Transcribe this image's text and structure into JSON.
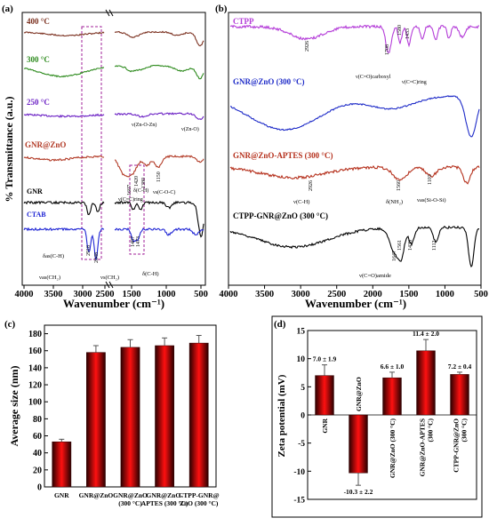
{
  "panels": {
    "a": {
      "label": "(a)",
      "xlabel": "Wavenumber (cm⁻¹)",
      "ylabel": "% Transmittance (a.u.)",
      "xticks": [
        "4000",
        "3500",
        "3000",
        "2500",
        "1500",
        "1000",
        "500"
      ],
      "curves": [
        {
          "name": "400 °C",
          "color": "#7a2f1e"
        },
        {
          "name": "300 °C",
          "color": "#2e8b1e"
        },
        {
          "name": "250 °C",
          "color": "#6a1fc4"
        },
        {
          "name": "GNR@ZnO",
          "color": "#b23a26"
        },
        {
          "name": "GNR",
          "color": "#000000"
        },
        {
          "name": "CTAB",
          "color": "#1e24d4"
        }
      ],
      "annotations": [
        "ν(Zn-O-Zn)",
        "ν(Zn-O)",
        "1607",
        "1420",
        "1380",
        "1150",
        "ν(C=C)ring",
        "δ(C-H)",
        "νs(C-O-C)",
        "2918",
        "2848",
        "1487",
        "1473",
        "δas(C-H)",
        "νas(CH₂)",
        "νs(CH₂)",
        "δ(C-H)"
      ]
    },
    "b": {
      "label": "(b)",
      "xlabel": "Wavenumber (cm⁻¹)",
      "xticks": [
        "4000",
        "3500",
        "3000",
        "2500",
        "2000",
        "1500",
        "1000",
        "500"
      ],
      "curves": [
        {
          "name": "CTPP",
          "color": "#b43cd8"
        },
        {
          "name": "GNR@ZnO (300 °C)",
          "color": "#1e2bc8"
        },
        {
          "name": "GNR@ZnO-APTES (300 °C)",
          "color": "#b5301c"
        },
        {
          "name": "CTPP-GNR@ZnO (300 °C)",
          "color": "#000000"
        }
      ],
      "annotations": [
        "2926",
        "1708",
        "1580",
        "1433",
        "ν(C=O)carboxyl",
        "ν(C=C)ring",
        "2926",
        "1560",
        "1103",
        "ν(C-H)",
        "δ(NH₂)",
        "νas(Si-O-Si)",
        "1647",
        "1561",
        "1438",
        "1112",
        "ν(C=O)amide"
      ]
    },
    "c": {
      "label": "(c)",
      "ylabel": "Average size (nm)"
    },
    "d": {
      "label": "(d)",
      "ylabel": "Zeta potential (mV)"
    }
  },
  "chart_data": [
    {
      "type": "bar",
      "panel": "c",
      "categories": [
        "GNR",
        "GNR@ZnO",
        "GNR@ZnO (300 °C)",
        "GNR@ZnO-APTES (300 °C)",
        "CTPP-GNR@ZnO (300 °C)"
      ],
      "category_lines": [
        [
          "GNR"
        ],
        [
          "GNR@ZnO"
        ],
        [
          "GNR@ZnO",
          "(300 °C)"
        ],
        [
          "GNR@ZnO-",
          "APTES (300 °C)"
        ],
        [
          "CTPP-GNR@",
          "ZnO (300 °C)"
        ]
      ],
      "values": [
        53,
        158,
        164,
        166,
        169
      ],
      "errors": [
        3,
        8,
        9,
        9,
        9
      ],
      "ylim": [
        0,
        190
      ],
      "yticks": [
        0,
        20,
        40,
        60,
        80,
        100,
        120,
        140,
        160,
        180
      ]
    },
    {
      "type": "bar",
      "panel": "d",
      "categories": [
        "GNR",
        "GNR@ZnO",
        "GNR@ZnO (300 °C)",
        "GNR@ZnO-APTES (300 °C)",
        "CTPP-GNR@ZnO (300 °C)"
      ],
      "category_lines": [
        [
          "GNR"
        ],
        [
          "GNR@ZnO"
        ],
        [
          "GNR@ZnO (300 °C)"
        ],
        [
          "GNR@ZnO-APTES",
          "(300 °C)"
        ],
        [
          "CTPP-GNR@ZnO",
          "(300 °C)"
        ]
      ],
      "values": [
        7.0,
        -10.3,
        6.6,
        11.4,
        7.2
      ],
      "errors": [
        1.9,
        2.2,
        1.0,
        2.0,
        0.4
      ],
      "value_labels": [
        "7.0 ± 1.9",
        "-10.3 ± 2.2",
        "6.6 ± 1.0",
        "11.4 ± 2.0",
        "7.2 ± 0.4"
      ],
      "ylim": [
        -15,
        15
      ],
      "yticks": [
        -15,
        -10,
        -5,
        0,
        5,
        10,
        15
      ]
    }
  ]
}
